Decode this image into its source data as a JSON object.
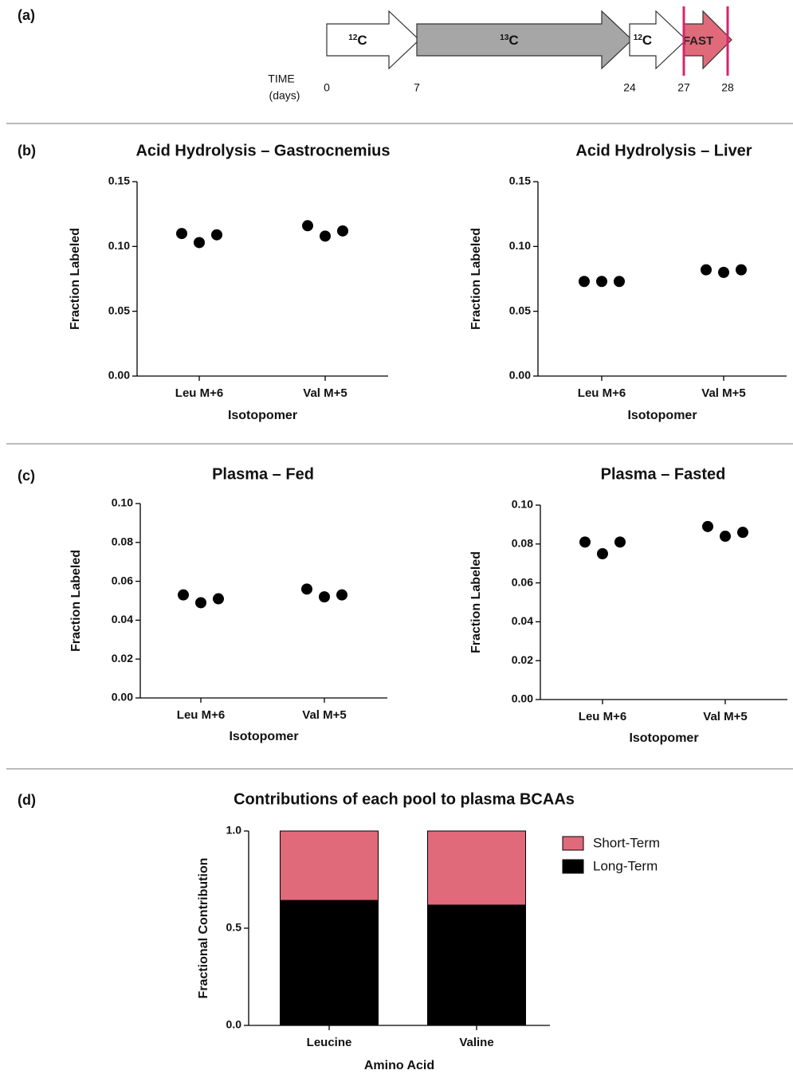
{
  "panel_labels": [
    "(a)",
    "(b)",
    "(c)",
    "(d)"
  ],
  "timeline": {
    "axis_label": [
      "TIME",
      "(days)"
    ],
    "ticks": [
      0,
      7,
      24,
      27,
      28
    ],
    "segments": [
      {
        "mass": "12",
        "element": "C",
        "start": 0,
        "end": 7,
        "color": "#ffffff"
      },
      {
        "mass": "13",
        "element": "C",
        "start": 7,
        "end": 24,
        "color": "#a6a6a6"
      },
      {
        "mass": "12",
        "element": "C",
        "start": 24,
        "end": 27,
        "color": "#ffffff"
      },
      {
        "label": "FAST",
        "start": 27,
        "end": 28,
        "color": "#e06a7a"
      }
    ],
    "markers": [
      27,
      28
    ],
    "marker_color": "#d6246e"
  },
  "chart_data": [
    {
      "type": "scatter",
      "title": "Acid Hydrolysis – Gastrocnemius",
      "xlabel": "Isotopomer",
      "ylabel": "Fraction Labeled",
      "categories": [
        "Leu M+6",
        "Val M+5"
      ],
      "values": [
        [
          0.11,
          0.103,
          0.109
        ],
        [
          0.116,
          0.108,
          0.112
        ]
      ],
      "color": "#000000",
      "ylim": [
        0,
        0.15
      ],
      "yticks": [
        {
          "value": 0,
          "label": "0.00"
        },
        0.05,
        {
          "value": 0.1,
          "label": "0.10"
        },
        0.15
      ]
    },
    {
      "type": "scatter",
      "title": "Acid Hydrolysis – Liver",
      "xlabel": "Isotopomer",
      "ylabel": "Fraction Labeled",
      "categories": [
        "Leu M+6",
        "Val M+5"
      ],
      "values": [
        [
          0.073,
          0.073,
          0.073
        ],
        [
          0.082,
          0.08,
          0.082
        ]
      ],
      "color": "#000000",
      "ylim": [
        0,
        0.15
      ],
      "yticks": [
        {
          "value": 0,
          "label": "0.00"
        },
        0.05,
        {
          "value": 0.1,
          "label": "0.10"
        },
        0.15
      ]
    },
    {
      "type": "scatter",
      "title": "Plasma – Fed",
      "xlabel": "Isotopomer",
      "ylabel": "Fraction Labeled",
      "categories": [
        "Leu M+6",
        "Val M+5"
      ],
      "values": [
        [
          0.053,
          0.049,
          0.051
        ],
        [
          0.056,
          0.052,
          0.053
        ]
      ],
      "color": "#000000",
      "ylim": [
        0,
        0.1
      ],
      "yticks": [
        {
          "value": 0,
          "label": "0.00"
        },
        0.02,
        0.04,
        0.06,
        0.08,
        {
          "value": 0.1,
          "label": "0.10"
        }
      ]
    },
    {
      "type": "scatter",
      "title": "Plasma – Fasted",
      "xlabel": "Isotopomer",
      "ylabel": "Fraction Labeled",
      "categories": [
        "Leu M+6",
        "Val M+5"
      ],
      "values": [
        [
          0.081,
          0.075,
          0.081
        ],
        [
          0.089,
          0.084,
          0.086
        ]
      ],
      "color": "#000000",
      "ylim": [
        0,
        0.1
      ],
      "yticks": [
        {
          "value": 0,
          "label": "0.00"
        },
        0.02,
        0.04,
        0.06,
        0.08,
        {
          "value": 0.1,
          "label": "0.10"
        }
      ]
    },
    {
      "type": "bar",
      "stacked": true,
      "title": "Contributions of each pool to plasma BCAAs",
      "xlabel": "Amino Acid",
      "ylabel": "Fractional Contribution",
      "categories": [
        "Leucine",
        "Valine"
      ],
      "series": [
        {
          "name": "Long-Term",
          "color": "#000000",
          "values": [
            0.643,
            0.619
          ]
        },
        {
          "name": "Short-Term",
          "color": "#e06a7a",
          "values": [
            0.357,
            0.381
          ]
        }
      ],
      "ylim": [
        0,
        1
      ],
      "yticks": [
        {
          "value": 0,
          "label": "0.0"
        },
        0.5,
        {
          "value": 1,
          "label": "1.0"
        }
      ],
      "legend": "right"
    }
  ]
}
